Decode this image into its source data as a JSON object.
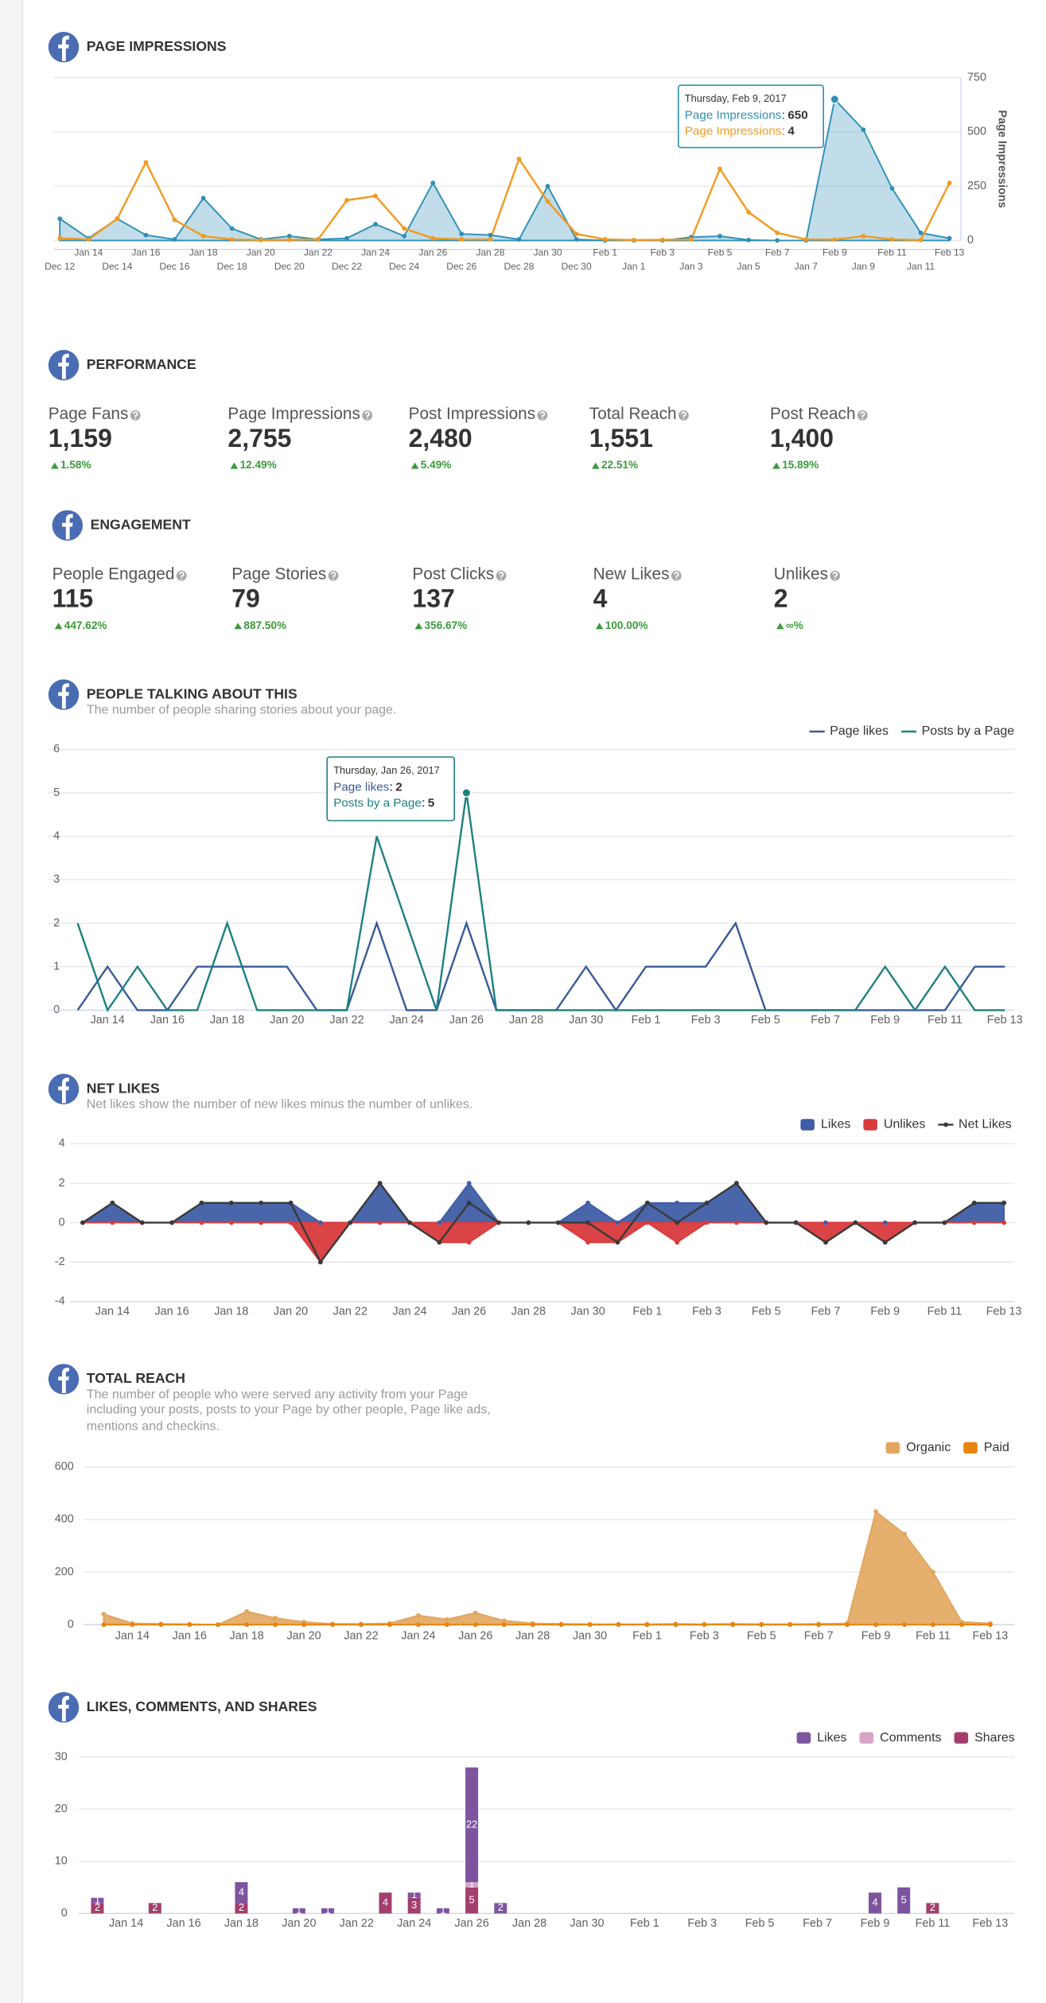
{
  "performance": {
    "title": "PERFORMANCE",
    "metrics": [
      {
        "label": "Page Fans",
        "value": "1,159",
        "change": "1.58%"
      },
      {
        "label": "Page Impressions",
        "value": "2,755",
        "change": "12.49%"
      },
      {
        "label": "Post Impressions",
        "value": "2,480",
        "change": "5.49%"
      },
      {
        "label": "Total Reach",
        "value": "1,551",
        "change": "22.51%"
      },
      {
        "label": "Post Reach",
        "value": "1,400",
        "change": "15.89%"
      }
    ]
  },
  "engagement": {
    "title": "ENGAGEMENT",
    "metrics": [
      {
        "label": "People Engaged",
        "value": "115",
        "change": "447.62%"
      },
      {
        "label": "Page Stories",
        "value": "79",
        "change": "887.50%"
      },
      {
        "label": "Post Clicks",
        "value": "137",
        "change": "356.67%"
      },
      {
        "label": "New Likes",
        "value": "4",
        "change": "100.00%"
      },
      {
        "label": "Unlikes",
        "value": "2",
        "change": "∞%"
      }
    ]
  },
  "chart_data": [
    {
      "type": "line",
      "title": "PAGE IMPRESSIONS",
      "y_axis_title": "Page Impressions",
      "categories": [
        null,
        "Jan 14",
        null,
        "Jan 16",
        null,
        "Jan 18",
        null,
        "Jan 20",
        null,
        "Jan 22",
        null,
        "Jan 24",
        null,
        "Jan 26",
        null,
        "Jan 28",
        null,
        "Jan 30",
        null,
        "Feb 1",
        null,
        "Feb 3",
        null,
        "Feb 5",
        null,
        "Feb 7",
        null,
        "Feb 9",
        null,
        "Feb 11",
        null,
        "Feb 13"
      ],
      "previous_categories": [
        "Dec 12",
        null,
        "Dec 14",
        null,
        "Dec 16",
        null,
        "Dec 18",
        null,
        "Dec 20",
        null,
        "Dec 22",
        null,
        "Dec 24",
        null,
        "Dec 26",
        null,
        "Dec 28",
        null,
        "Dec 30",
        null,
        "Jan 1",
        null,
        "Jan 3",
        null,
        "Jan 5",
        null,
        "Jan 7",
        null,
        "Jan 9",
        null,
        "Jan 11",
        null
      ],
      "series": [
        {
          "name": "Page Impressions",
          "color": "#2f8fb5",
          "mark": "area",
          "values": [
            100,
            10,
            100,
            25,
            5,
            195,
            55,
            5,
            20,
            5,
            10,
            75,
            20,
            265,
            30,
            25,
            5,
            250,
            5,
            0,
            0,
            0,
            15,
            20,
            2,
            0,
            0,
            650,
            510,
            240,
            35,
            10
          ]
        },
        {
          "name": "Page Impressions",
          "color": "#f29a1f",
          "mark": "line",
          "values": [
            10,
            5,
            100,
            360,
            95,
            20,
            5,
            2,
            3,
            5,
            185,
            205,
            55,
            10,
            5,
            5,
            375,
            180,
            30,
            5,
            2,
            3,
            5,
            330,
            130,
            35,
            5,
            4,
            20,
            5,
            2,
            265
          ]
        }
      ],
      "ylim": [
        0,
        750
      ],
      "yticks": [
        0,
        250,
        500,
        750
      ],
      "grid": true,
      "tooltip": {
        "title": "Thursday, Feb 9, 2017"
      }
    },
    {
      "type": "line",
      "title": "PEOPLE TALKING ABOUT THIS",
      "subtitle": "The number of people sharing stories about your page.",
      "categories": [
        null,
        "Jan 14",
        null,
        "Jan 16",
        null,
        "Jan 18",
        null,
        "Jan 20",
        null,
        "Jan 22",
        null,
        "Jan 24",
        null,
        "Jan 26",
        null,
        "Jan 28",
        null,
        "Jan 30",
        null,
        "Feb 1",
        null,
        "Feb 3",
        null,
        "Feb 5",
        null,
        "Feb 7",
        null,
        "Feb 9",
        null,
        "Feb 11",
        null,
        "Feb 13"
      ],
      "series": [
        {
          "name": "Page likes",
          "color": "#3a5a9a",
          "mark": "line",
          "values": [
            0,
            1,
            0,
            0,
            1,
            1,
            1,
            1,
            0,
            0,
            2,
            0,
            0,
            2,
            0,
            0,
            0,
            1,
            0,
            1,
            1,
            1,
            2,
            0,
            0,
            0,
            0,
            0,
            0,
            0,
            1,
            1
          ]
        },
        {
          "name": "Posts by a Page",
          "color": "#1e8080",
          "mark": "line",
          "values": [
            2,
            0,
            1,
            0,
            0,
            2,
            0,
            0,
            0,
            0,
            4,
            2,
            0,
            5,
            0,
            0,
            0,
            0,
            0,
            0,
            0,
            0,
            0,
            0,
            0,
            0,
            0,
            1,
            0,
            1,
            0,
            0
          ]
        }
      ],
      "ylim": [
        0,
        6
      ],
      "yticks": [
        0,
        1,
        2,
        3,
        4,
        5,
        6
      ],
      "grid": true,
      "legend": "top-right",
      "tooltip": {
        "title": "Thursday, Jan 26, 2017"
      }
    },
    {
      "type": "area",
      "title": "NET LIKES",
      "subtitle": "Net likes show the number of new likes minus the number of unlikes.",
      "categories": [
        null,
        "Jan 14",
        null,
        "Jan 16",
        null,
        "Jan 18",
        null,
        "Jan 20",
        null,
        "Jan 22",
        null,
        "Jan 24",
        null,
        "Jan 26",
        null,
        "Jan 28",
        null,
        "Jan 30",
        null,
        "Feb 1",
        null,
        "Feb 3",
        null,
        "Feb 5",
        null,
        "Feb 7",
        null,
        "Feb 9",
        null,
        "Feb 11",
        null,
        "Feb 13"
      ],
      "series": [
        {
          "name": "Likes",
          "color": "#3f5ea6",
          "mark": "area",
          "values": [
            0,
            1,
            0,
            0,
            1,
            1,
            1,
            1,
            0,
            0,
            2,
            0,
            0,
            2,
            0,
            0,
            0,
            1,
            0,
            1,
            1,
            1,
            2,
            0,
            0,
            0,
            0,
            0,
            0,
            0,
            1,
            1
          ]
        },
        {
          "name": "Unlikes",
          "color": "#d93a3c",
          "mark": "area",
          "values": [
            0,
            0,
            0,
            0,
            0,
            0,
            0,
            0,
            -2,
            0,
            0,
            0,
            -1,
            -1,
            0,
            0,
            0,
            -1,
            -1,
            0,
            -1,
            0,
            0,
            0,
            0,
            -1,
            0,
            -1,
            0,
            0,
            0,
            0
          ]
        },
        {
          "name": "Net Likes",
          "color": "#3a3a3a",
          "mark": "line",
          "values": [
            0,
            1,
            0,
            0,
            1,
            1,
            1,
            1,
            -2,
            0,
            2,
            0,
            -1,
            1,
            0,
            0,
            0,
            0,
            -1,
            1,
            0,
            1,
            2,
            0,
            0,
            -1,
            0,
            -1,
            0,
            0,
            1,
            1
          ]
        }
      ],
      "ylim": [
        -4,
        4
      ],
      "yticks": [
        -4,
        -2,
        0,
        2,
        4
      ],
      "grid": true,
      "legend": "top-right"
    },
    {
      "type": "area",
      "title": "TOTAL REACH",
      "subtitle": "The number of people who were served any activity from your Page including your posts, posts to your Page by other people, Page like ads, mentions and checkins.",
      "categories": [
        null,
        "Jan 14",
        null,
        "Jan 16",
        null,
        "Jan 18",
        null,
        "Jan 20",
        null,
        "Jan 22",
        null,
        "Jan 24",
        null,
        "Jan 26",
        null,
        "Jan 28",
        null,
        "Jan 30",
        null,
        "Feb 1",
        null,
        "Feb 3",
        null,
        "Feb 5",
        null,
        "Feb 7",
        null,
        "Feb 9",
        null,
        "Feb 11",
        null,
        "Feb 13"
      ],
      "series": [
        {
          "name": "Organic",
          "color": "#e2a65e",
          "mark": "area",
          "values": [
            40,
            5,
            3,
            2,
            0,
            50,
            25,
            10,
            3,
            3,
            5,
            35,
            20,
            45,
            15,
            5,
            3,
            2,
            2,
            2,
            3,
            2,
            3,
            2,
            2,
            3,
            5,
            430,
            345,
            200,
            10,
            5
          ]
        },
        {
          "name": "Paid",
          "color": "#e8830c",
          "mark": "area",
          "values": [
            0,
            0,
            0,
            0,
            0,
            0,
            0,
            0,
            0,
            0,
            0,
            0,
            0,
            0,
            0,
            0,
            0,
            0,
            0,
            0,
            0,
            0,
            0,
            0,
            0,
            0,
            0,
            0,
            0,
            0,
            0,
            0
          ]
        }
      ],
      "ylim": [
        0,
        600
      ],
      "yticks": [
        0,
        200,
        400,
        600
      ],
      "grid": true,
      "legend": "top-right"
    },
    {
      "type": "stacked_bar",
      "title": "LIKES, COMMENTS, AND SHARES",
      "categories": [
        null,
        "Jan 14",
        null,
        "Jan 16",
        null,
        "Jan 18",
        null,
        "Jan 20",
        null,
        "Jan 22",
        null,
        "Jan 24",
        null,
        "Jan 26",
        null,
        "Jan 28",
        null,
        "Jan 30",
        null,
        "Feb 1",
        null,
        "Feb 3",
        null,
        "Feb 5",
        null,
        "Feb 7",
        null,
        "Feb 9",
        null,
        "Feb 11",
        null,
        "Feb 13"
      ],
      "series": [
        {
          "name": "Likes",
          "color": "#7d559f",
          "values": [
            1,
            0,
            0,
            0,
            0,
            4,
            0,
            1,
            1,
            0,
            0,
            1,
            1,
            22,
            2,
            0,
            0,
            0,
            0,
            0,
            0,
            0,
            0,
            0,
            0,
            0,
            0,
            4,
            5,
            0,
            0,
            0
          ]
        },
        {
          "name": "Comments",
          "color": "#d7a6c4",
          "values": [
            0,
            0,
            0,
            0,
            0,
            0,
            0,
            0,
            0,
            0,
            0,
            0,
            0,
            1,
            0,
            0,
            0,
            0,
            0,
            0,
            0,
            0,
            0,
            0,
            0,
            0,
            0,
            0,
            0,
            0,
            0,
            0
          ]
        },
        {
          "name": "Shares",
          "color": "#a23f6d",
          "values": [
            2,
            0,
            2,
            0,
            0,
            2,
            0,
            0,
            0,
            0,
            4,
            3,
            0,
            5,
            0,
            0,
            0,
            0,
            0,
            0,
            0,
            0,
            0,
            0,
            0,
            0,
            0,
            0,
            0,
            2,
            0,
            0
          ]
        }
      ],
      "ylim": [
        0,
        30
      ],
      "yticks": [
        0,
        10,
        20,
        30
      ],
      "grid": true,
      "legend": "top-right"
    }
  ]
}
